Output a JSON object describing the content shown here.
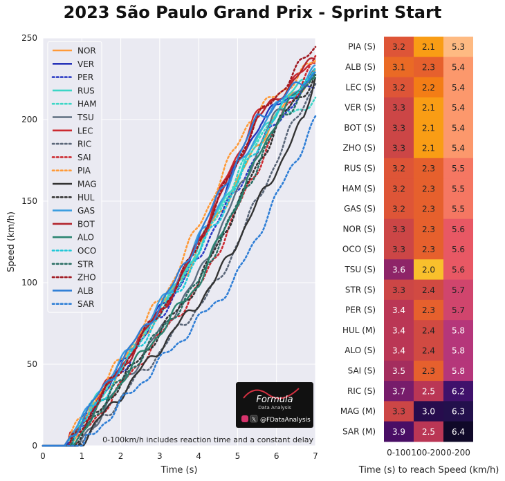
{
  "title": "2023 São Paulo Grand Prix - Sprint Start",
  "note": "0-100km/h includes reaction time and a constant delay",
  "logo": {
    "name": "Formula",
    "sub": "Data Analysis",
    "handle": "@FDataAnalysis"
  },
  "chart_data": [
    {
      "type": "line",
      "xlabel": "Time (s)",
      "ylabel": "Speed (km/h)",
      "xlim": [
        0,
        7
      ],
      "ylim": [
        0,
        250
      ],
      "xticks": [
        0,
        1,
        2,
        3,
        4,
        5,
        6,
        7
      ],
      "yticks": [
        0,
        50,
        100,
        150,
        200,
        250
      ],
      "grid": true,
      "legend_position": "top-left",
      "series": [
        {
          "name": "NOR",
          "color": "#ff9a38",
          "dash": "solid",
          "reach": [
            0.6,
            3.5,
            5.9
          ],
          "end": 230
        },
        {
          "name": "VER",
          "color": "#2633b8",
          "dash": "solid",
          "reach": [
            0.6,
            3.5,
            5.6
          ],
          "end": 226
        },
        {
          "name": "PER",
          "color": "#2d3cc4",
          "dash": "dot",
          "reach": [
            0.65,
            3.6,
            6.0
          ],
          "end": 222
        },
        {
          "name": "RUS",
          "color": "#3cd6c6",
          "dash": "solid",
          "reach": [
            0.55,
            3.5,
            5.8
          ],
          "end": 232
        },
        {
          "name": "HAM",
          "color": "#3cd6c6",
          "dash": "dot",
          "reach": [
            0.55,
            3.5,
            5.8
          ],
          "end": 211
        },
        {
          "name": "TSU",
          "color": "#5e6e80",
          "dash": "solid",
          "reach": [
            0.9,
            3.9,
            5.9
          ],
          "end": 228
        },
        {
          "name": "LEC",
          "color": "#cc2a30",
          "dash": "solid",
          "reach": [
            0.55,
            3.5,
            5.4
          ],
          "end": 236
        },
        {
          "name": "RIC",
          "color": "#5a6678",
          "dash": "dot",
          "reach": [
            0.95,
            4.5,
            6.5
          ],
          "end": 224
        },
        {
          "name": "SAI",
          "color": "#cc2a30",
          "dash": "dot",
          "reach": [
            0.8,
            4.1,
            6.1
          ],
          "end": 238
        },
        {
          "name": "PIA",
          "color": "#ff9a38",
          "dash": "dot",
          "reach": [
            0.55,
            3.3,
            5.3
          ],
          "end": 236
        },
        {
          "name": "MAG",
          "color": "#333333",
          "dash": "solid",
          "reach": [
            0.9,
            4.4,
            6.7
          ],
          "end": 228
        },
        {
          "name": "HUL",
          "color": "#333333",
          "dash": "dot",
          "reach": [
            0.75,
            4.0,
            6.1
          ],
          "end": 226
        },
        {
          "name": "GAS",
          "color": "#3a9de0",
          "dash": "solid",
          "reach": [
            0.55,
            3.4,
            5.7
          ],
          "end": 230
        },
        {
          "name": "BOT",
          "color": "#b3242c",
          "dash": "solid",
          "reach": [
            0.65,
            3.5,
            5.5
          ],
          "end": 238
        },
        {
          "name": "ALO",
          "color": "#2a8470",
          "dash": "solid",
          "reach": [
            0.7,
            4.0,
            6.0
          ],
          "end": 230
        },
        {
          "name": "OCO",
          "color": "#20c8d8",
          "dash": "dot",
          "reach": [
            0.65,
            3.6,
            5.9
          ],
          "end": 232
        },
        {
          "name": "STR",
          "color": "#2a6e64",
          "dash": "dot",
          "reach": [
            0.7,
            4.0,
            6.1
          ],
          "end": 226
        },
        {
          "name": "ZHO",
          "color": "#a01820",
          "dash": "dot",
          "reach": [
            0.65,
            3.5,
            5.5
          ],
          "end": 245
        },
        {
          "name": "ALB",
          "color": "#2e7ed6",
          "dash": "solid",
          "reach": [
            0.55,
            3.4,
            5.5
          ],
          "end": 230
        },
        {
          "name": "SAR",
          "color": "#2e7ed6",
          "dash": "dot",
          "reach": [
            1.0,
            4.9,
            7.0
          ],
          "end": 226
        }
      ]
    },
    {
      "type": "heatmap",
      "xlabel": "Time (s) to reach Speed (km/h)",
      "columns": [
        "0-100",
        "100-200",
        "0-200"
      ],
      "rows": [
        {
          "label": "PIA (S)",
          "values": [
            3.2,
            2.1,
            5.3
          ]
        },
        {
          "label": "ALB (S)",
          "values": [
            3.1,
            2.3,
            5.4
          ]
        },
        {
          "label": "LEC (S)",
          "values": [
            3.2,
            2.2,
            5.4
          ]
        },
        {
          "label": "VER (S)",
          "values": [
            3.3,
            2.1,
            5.4
          ]
        },
        {
          "label": "BOT (S)",
          "values": [
            3.3,
            2.1,
            5.4
          ]
        },
        {
          "label": "ZHO (S)",
          "values": [
            3.3,
            2.1,
            5.4
          ]
        },
        {
          "label": "RUS (S)",
          "values": [
            3.2,
            2.3,
            5.5
          ]
        },
        {
          "label": "HAM (S)",
          "values": [
            3.2,
            2.3,
            5.5
          ]
        },
        {
          "label": "GAS (S)",
          "values": [
            3.2,
            2.3,
            5.5
          ]
        },
        {
          "label": "NOR (S)",
          "values": [
            3.3,
            2.3,
            5.6
          ]
        },
        {
          "label": "OCO (S)",
          "values": [
            3.3,
            2.3,
            5.6
          ]
        },
        {
          "label": "TSU (S)",
          "values": [
            3.6,
            2.0,
            5.6
          ]
        },
        {
          "label": "STR (S)",
          "values": [
            3.3,
            2.4,
            5.7
          ]
        },
        {
          "label": "PER (S)",
          "values": [
            3.4,
            2.3,
            5.7
          ]
        },
        {
          "label": "HUL (M)",
          "values": [
            3.4,
            2.4,
            5.8
          ]
        },
        {
          "label": "ALO (S)",
          "values": [
            3.4,
            2.4,
            5.8
          ]
        },
        {
          "label": "SAI (S)",
          "values": [
            3.5,
            2.3,
            5.8
          ]
        },
        {
          "label": "RIC (S)",
          "values": [
            3.7,
            2.5,
            6.2
          ]
        },
        {
          "label": "MAG (M)",
          "values": [
            3.3,
            3.0,
            6.3
          ]
        },
        {
          "label": "SAR (M)",
          "values": [
            3.9,
            2.5,
            6.4
          ]
        }
      ]
    }
  ]
}
